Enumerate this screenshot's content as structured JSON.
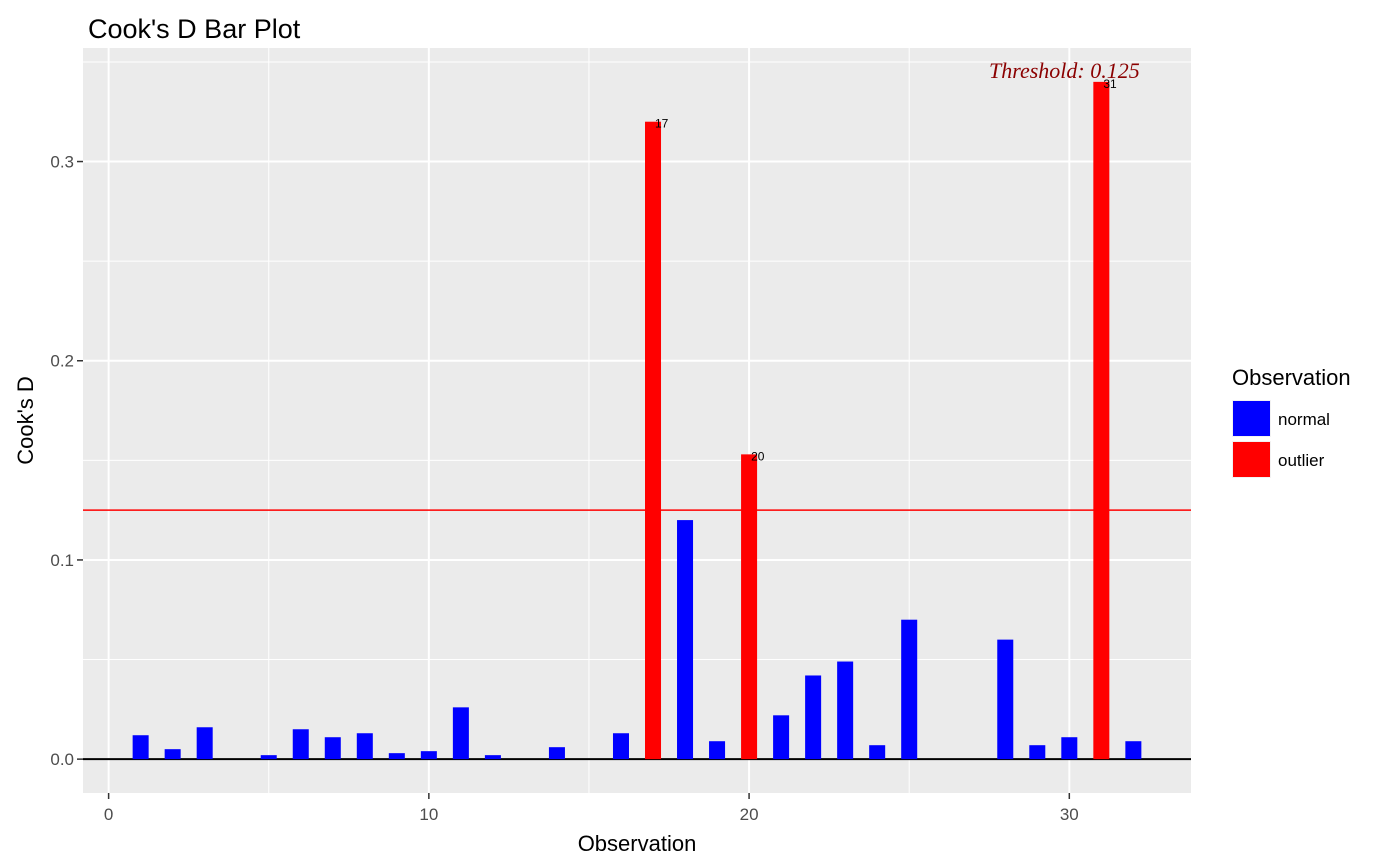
{
  "chart_data": {
    "type": "bar",
    "title": "Cook's D Bar Plot",
    "xlabel": "Observation",
    "ylabel": "Cook's D",
    "xlim": [
      -0.8,
      33.8
    ],
    "ylim": [
      -0.017,
      0.357
    ],
    "x_ticks": [
      0,
      10,
      20,
      30
    ],
    "x_tick_labels": [
      "0",
      "10",
      "20",
      "30"
    ],
    "y_ticks": [
      0.0,
      0.1,
      0.2,
      0.3
    ],
    "y_tick_labels": [
      "0.0",
      "0.1",
      "0.2",
      "0.3"
    ],
    "grid": true,
    "threshold": {
      "value": 0.125,
      "label": "Threshold: 0.125",
      "color": "#FF0000",
      "label_color": "#8B0000"
    },
    "x": [
      1,
      2,
      3,
      4,
      5,
      6,
      7,
      8,
      9,
      10,
      11,
      12,
      13,
      14,
      15,
      16,
      17,
      18,
      19,
      20,
      21,
      22,
      23,
      24,
      25,
      26,
      27,
      28,
      29,
      30,
      31,
      32
    ],
    "values": [
      0.012,
      0.005,
      0.016,
      0.0,
      0.002,
      0.015,
      0.011,
      0.013,
      0.003,
      0.004,
      0.026,
      0.002,
      0.0,
      0.006,
      0.0,
      0.013,
      0.32,
      0.12,
      0.009,
      0.153,
      0.022,
      0.042,
      0.049,
      0.007,
      0.07,
      0.0,
      0.0,
      0.06,
      0.007,
      0.011,
      0.34,
      0.009
    ],
    "groups": [
      "normal",
      "normal",
      "normal",
      "normal",
      "normal",
      "normal",
      "normal",
      "normal",
      "normal",
      "normal",
      "normal",
      "normal",
      "normal",
      "normal",
      "normal",
      "normal",
      "outlier",
      "normal",
      "normal",
      "outlier",
      "normal",
      "normal",
      "normal",
      "normal",
      "normal",
      "normal",
      "normal",
      "normal",
      "normal",
      "normal",
      "outlier",
      "normal"
    ],
    "bar_labels": [
      {
        "x": 17,
        "text": "17"
      },
      {
        "x": 20,
        "text": "20"
      },
      {
        "x": 31,
        "text": "31"
      }
    ],
    "legend": {
      "title": "Observation",
      "position": "right",
      "items": [
        {
          "label": "normal",
          "color": "#0000FF"
        },
        {
          "label": "outlier",
          "color": "#FF0000"
        }
      ]
    },
    "colors": {
      "panel_background": "#EBEBEB",
      "grid": "#FFFFFF",
      "normal": "#0000FF",
      "outlier": "#FF0000",
      "zero_line": "#000000"
    }
  }
}
